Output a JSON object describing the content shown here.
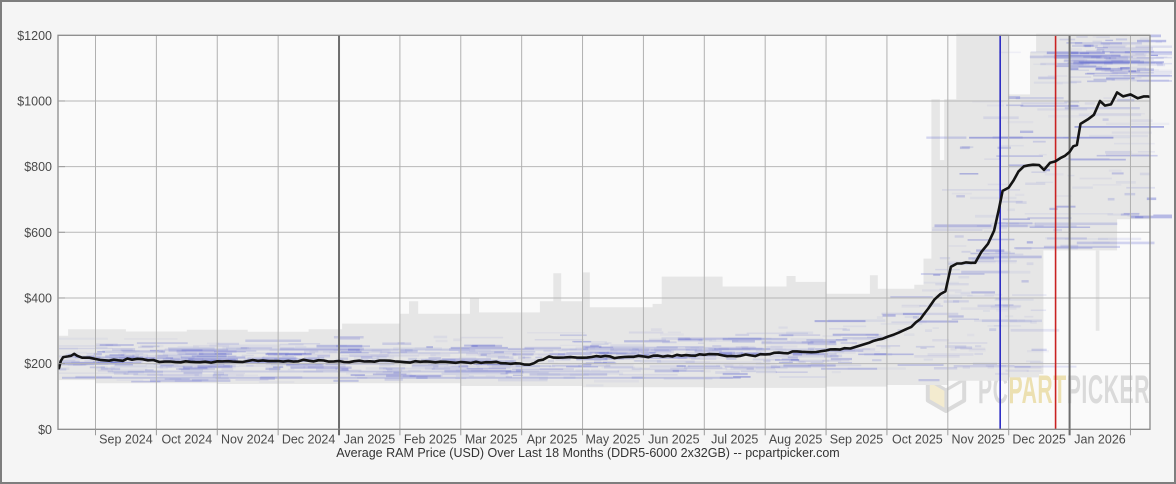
{
  "page": {
    "background": "#f5f5f5",
    "frame_color": "#7e7e7e",
    "plot_background": "#fafafa",
    "gridline_color": "#b7b7b7",
    "axis_frame_color": "#8a8a8a",
    "label_color": "#4a4a4a",
    "title_color": "#333333"
  },
  "watermark": {
    "pc": "PC",
    "part": "PART",
    "picker": "PICKER",
    "gray": "#d9d9d9",
    "gold": "#ecdfae"
  },
  "chart_data": {
    "type": "line",
    "title": "Average RAM Price (USD) Over Last 18 Months (DDR5-6000 2x32GB) -- pcpartpicker.com",
    "units": "USD",
    "m_unit": "months since Aug 1 2024 (1 = Sep 1 2024 axis boundary, 18 = Feb 1 2026)",
    "x_axis": {
      "labels": [
        "Sep 2024",
        "Oct 2024",
        "Nov 2024",
        "Dec 2024",
        "Jan 2025",
        "Feb 2025",
        "Mar 2025",
        "Apr 2025",
        "May 2025",
        "Jun 2025",
        "Jul 2025",
        "Aug 2025",
        "Sep 2025",
        "Oct 2025",
        "Nov 2025",
        "Dec 2025",
        "Jan 2026"
      ],
      "data_start_m": 0.4,
      "data_end_m": 18.35
    },
    "y_axis": {
      "min": 0,
      "max": 1200,
      "step": 200,
      "ticks": [
        {
          "label": "$0",
          "value": 0
        },
        {
          "label": "$200",
          "value": 200
        },
        {
          "label": "$400",
          "value": 400
        },
        {
          "label": "$600",
          "value": 600
        },
        {
          "label": "$800",
          "value": 800
        },
        {
          "label": "$1000",
          "value": 1000
        },
        {
          "label": "$1200",
          "value": 1200
        }
      ]
    },
    "series": {
      "name": "average-price",
      "color": "#141414",
      "points": [
        [
          0.4,
          186
        ],
        [
          0.43,
          208
        ],
        [
          0.47,
          220
        ],
        [
          0.55,
          222
        ],
        [
          0.6,
          224
        ],
        [
          0.65,
          230
        ],
        [
          0.7,
          224
        ],
        [
          0.78,
          218
        ],
        [
          0.9,
          218
        ],
        [
          1.0,
          214
        ],
        [
          1.3,
          212
        ],
        [
          1.6,
          212
        ],
        [
          1.95,
          211
        ],
        [
          2.05,
          205
        ],
        [
          2.4,
          204
        ],
        [
          2.8,
          206
        ],
        [
          3.0,
          207
        ],
        [
          3.5,
          208
        ],
        [
          4.0,
          208
        ],
        [
          4.5,
          209
        ],
        [
          5.0,
          208
        ],
        [
          5.5,
          207
        ],
        [
          6.0,
          206
        ],
        [
          6.5,
          206
        ],
        [
          7.0,
          205
        ],
        [
          7.5,
          204
        ],
        [
          7.9,
          201
        ],
        [
          8.05,
          197
        ],
        [
          8.2,
          201
        ],
        [
          8.35,
          212
        ],
        [
          8.45,
          222
        ],
        [
          8.6,
          218
        ],
        [
          8.8,
          220
        ],
        [
          9.0,
          218
        ],
        [
          9.3,
          221
        ],
        [
          9.6,
          219
        ],
        [
          10.0,
          222
        ],
        [
          10.4,
          224
        ],
        [
          10.7,
          226
        ],
        [
          11.0,
          227
        ],
        [
          11.3,
          225
        ],
        [
          11.6,
          224
        ],
        [
          12.0,
          228
        ],
        [
          12.3,
          232
        ],
        [
          12.6,
          236
        ],
        [
          13.0,
          240
        ],
        [
          13.3,
          247
        ],
        [
          13.5,
          252
        ],
        [
          13.7,
          263
        ],
        [
          13.85,
          273
        ],
        [
          14.0,
          281
        ],
        [
          14.2,
          295
        ],
        [
          14.4,
          312
        ],
        [
          14.55,
          336
        ],
        [
          14.68,
          368
        ],
        [
          14.78,
          395
        ],
        [
          14.88,
          412
        ],
        [
          14.96,
          420
        ],
        [
          15.05,
          495
        ],
        [
          15.15,
          505
        ],
        [
          15.45,
          507
        ],
        [
          15.55,
          540
        ],
        [
          15.66,
          565
        ],
        [
          15.76,
          605
        ],
        [
          15.84,
          672
        ],
        [
          15.9,
          726
        ],
        [
          16.0,
          736
        ],
        [
          16.08,
          758
        ],
        [
          16.16,
          785
        ],
        [
          16.25,
          801
        ],
        [
          16.4,
          806
        ],
        [
          16.5,
          805
        ],
        [
          16.58,
          790
        ],
        [
          16.68,
          812
        ],
        [
          16.85,
          826
        ],
        [
          17.0,
          845
        ],
        [
          17.06,
          862
        ],
        [
          17.12,
          866
        ],
        [
          17.18,
          930
        ],
        [
          17.3,
          944
        ],
        [
          17.4,
          958
        ],
        [
          17.5,
          1000
        ],
        [
          17.58,
          986
        ],
        [
          17.68,
          990
        ],
        [
          17.78,
          1026
        ],
        [
          17.88,
          1014
        ],
        [
          18.0,
          1020
        ],
        [
          18.12,
          1008
        ],
        [
          18.22,
          1014
        ],
        [
          18.35,
          1011
        ]
      ]
    },
    "range_band": {
      "color": "#e6e6e6",
      "top": [
        [
          0.4,
          285
        ],
        [
          0.55,
          305
        ],
        [
          1.5,
          298
        ],
        [
          2.5,
          303
        ],
        [
          3.5,
          297
        ],
        [
          4.5,
          305
        ],
        [
          5.05,
          322
        ],
        [
          6.0,
          352
        ],
        [
          6.15,
          390
        ],
        [
          6.3,
          352
        ],
        [
          7.15,
          400
        ],
        [
          7.3,
          356
        ],
        [
          8.3,
          390
        ],
        [
          8.52,
          475
        ],
        [
          8.65,
          390
        ],
        [
          9.0,
          478
        ],
        [
          9.12,
          372
        ],
        [
          10.15,
          382
        ],
        [
          10.3,
          465
        ],
        [
          11.3,
          435
        ],
        [
          12.35,
          467
        ],
        [
          12.5,
          449
        ],
        [
          13.0,
          413
        ],
        [
          13.72,
          469
        ],
        [
          13.85,
          428
        ],
        [
          14.45,
          440
        ],
        [
          14.6,
          520
        ],
        [
          14.73,
          1005
        ],
        [
          14.87,
          820
        ],
        [
          14.94,
          1005
        ],
        [
          15.14,
          1205
        ],
        [
          16.0,
          1020
        ],
        [
          16.35,
          1150
        ],
        [
          16.45,
          1205
        ],
        [
          18.45,
          1205
        ]
      ],
      "bottom": [
        [
          0.4,
          150
        ],
        [
          1.0,
          140
        ],
        [
          3.0,
          138
        ],
        [
          5.0,
          140
        ],
        [
          7.0,
          132
        ],
        [
          9.0,
          128
        ],
        [
          11.0,
          126
        ],
        [
          13.0,
          130
        ],
        [
          14.0,
          135
        ],
        [
          15.0,
          148
        ],
        [
          16.0,
          158
        ],
        [
          16.5,
          168
        ],
        [
          16.57,
          545
        ],
        [
          17.72,
          545
        ],
        [
          17.78,
          640
        ],
        [
          18.45,
          640
        ]
      ],
      "extra_rects": [
        {
          "m1": 17.43,
          "m2": 17.49,
          "top": 545,
          "bottom": 300
        }
      ]
    },
    "listings": {
      "color": "91,99,206",
      "seed": 1337,
      "clusters": [
        {
          "count": 700,
          "m1": 0.4,
          "m2": 18.35,
          "around_trend": true,
          "spread": 0.24,
          "len": 90,
          "alpha": 0.42
        },
        {
          "count": 140,
          "m1": 0.4,
          "m2": 13.5,
          "around_trend": true,
          "spread": 0.15,
          "len": 70,
          "alpha": 0.35
        },
        {
          "count": 95,
          "m1": 17.02,
          "m2": 18.5,
          "price_min": 1058,
          "price_max": 1192,
          "len": 100,
          "alpha": 0.5
        },
        {
          "count": 60,
          "m1": 15.1,
          "m2": 18.4,
          "price_min": 470,
          "price_max": 1010,
          "len": 80,
          "alpha": 0.45
        },
        {
          "count": 55,
          "m1": 15.0,
          "m2": 16.6,
          "price_min": 165,
          "price_max": 420,
          "len": 60,
          "alpha": 0.3
        }
      ],
      "long_streaks": [
        {
          "m1": 0.45,
          "m2": 11.6,
          "price": 157,
          "alpha": 0.28,
          "h": 2
        },
        {
          "m1": 1.2,
          "m2": 9.6,
          "price": 176,
          "alpha": 0.2,
          "h": 2
        },
        {
          "m1": 2.2,
          "m2": 12.8,
          "price": 243,
          "alpha": 0.18,
          "h": 2
        },
        {
          "m1": 15.35,
          "m2": 17.72,
          "price": 888,
          "alpha": 0.5,
          "h": 1.8
        },
        {
          "m1": 17.08,
          "m2": 18.55,
          "price": 921,
          "alpha": 0.5,
          "h": 1.8
        },
        {
          "m1": 17.15,
          "m2": 18.55,
          "price": 1118,
          "alpha": 0.4,
          "h": 2
        },
        {
          "m1": 15.9,
          "m2": 16.35,
          "price": 640,
          "alpha": 0.38,
          "h": 1.6
        }
      ]
    },
    "events": [
      {
        "name": "year-line-2025",
        "m": 5.0,
        "color": "#6e6e6e",
        "width": 2
      },
      {
        "name": "year-line-2026",
        "m": 17.0,
        "color": "#6e6e6e",
        "width": 2
      },
      {
        "name": "event-line-blue",
        "m": 15.86,
        "color": "#2a2ac4",
        "width": 1.6
      },
      {
        "name": "event-line-red",
        "m": 16.77,
        "color": "#c92222",
        "width": 1.6
      }
    ]
  }
}
